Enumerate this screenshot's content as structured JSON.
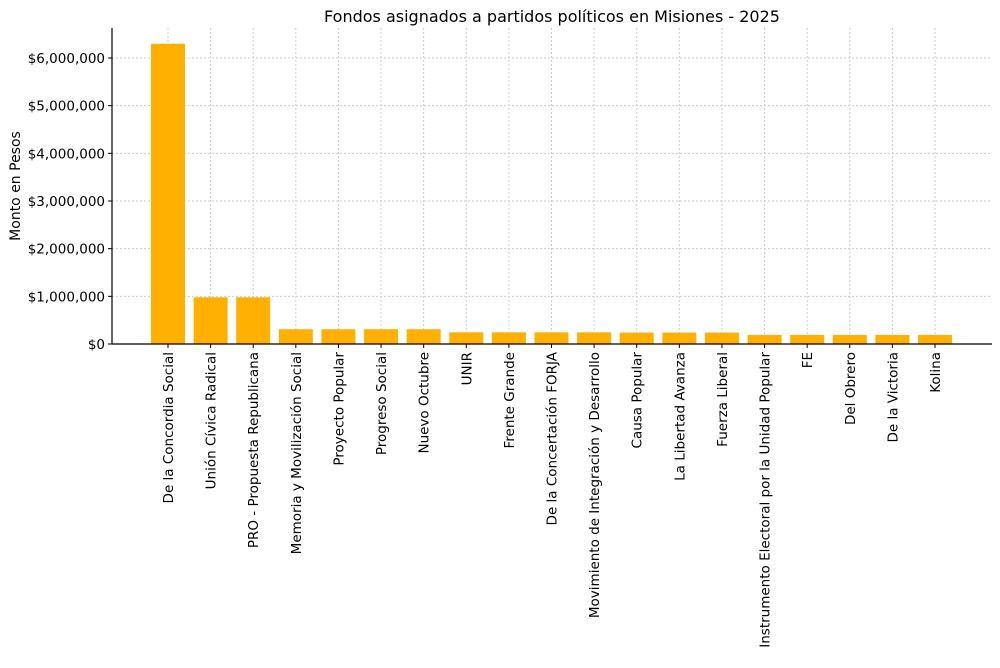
{
  "chart_data": {
    "type": "bar",
    "title": "Fondos asignados a partidos políticos en Misiones - 2025",
    "xlabel": "",
    "ylabel": "Monto en Pesos",
    "ylim": [
      0,
      6300000
    ],
    "grid": true,
    "bar_color": "#FFB000",
    "yticks": [
      0,
      1000000,
      2000000,
      3000000,
      4000000,
      5000000,
      6000000
    ],
    "ytick_labels": [
      "$0",
      "$1,000,000",
      "$2,000,000",
      "$3,000,000",
      "$4,000,000",
      "$5,000,000",
      "$6,000,000"
    ],
    "categories": [
      "De la Concordia Social",
      "Unión Cívica Radical",
      "PRO - Propuesta Republicana",
      "Memoria y Movilización Social",
      "Proyecto Popular",
      "Progreso Social",
      "Nuevo Octubre",
      "UNIR",
      "Frente Grande",
      "De la Concertación FORJA",
      "Movimiento de Integración y Desarrollo",
      "Causa Popular",
      "La Libertad Avanza",
      "Fuerza Liberal",
      "Instrumento Electoral por la Unidad Popular",
      "FE",
      "Del Obrero",
      "De la Victoria",
      "Kolina"
    ],
    "values": [
      6300000,
      980000,
      980000,
      310000,
      310000,
      310000,
      310000,
      245000,
      245000,
      245000,
      245000,
      240000,
      240000,
      240000,
      190000,
      190000,
      190000,
      190000,
      190000
    ]
  }
}
